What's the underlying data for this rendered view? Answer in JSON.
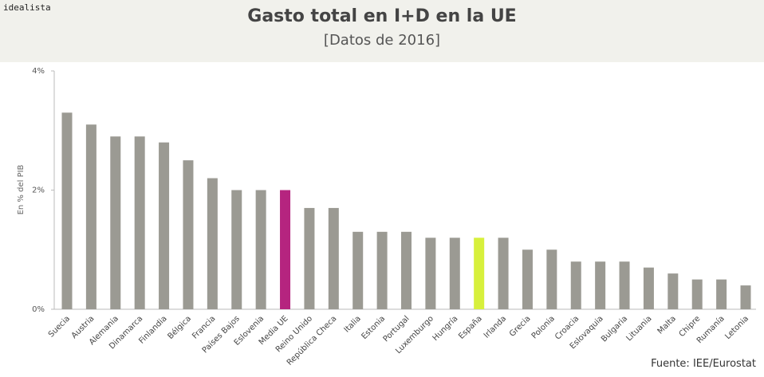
{
  "brand": "idealista",
  "source": "Fuente: IEE/Eurostat",
  "colors": {
    "bar": "#9b9a93",
    "highlight_media": "#b5247f",
    "highlight_spain": "#d7f03c",
    "header_bg": "#f1f1ec"
  },
  "chart_data": {
    "type": "bar",
    "title": "Gasto total en I+D en la UE",
    "subtitle": "[Datos de 2016]",
    "ylabel": "En % del PIB",
    "ylim": [
      0,
      4
    ],
    "yticks": [
      "0%",
      "2%",
      "4%"
    ],
    "grid": false,
    "categories": [
      "Suecia",
      "Austria",
      "Alemania",
      "Dinamarca",
      "Finlandia",
      "Bélgica",
      "Francia",
      "Países Bajos",
      "Eslovenia",
      "Media UE",
      "Reino Unido",
      "República Checa",
      "Italia",
      "Estonia",
      "Portugal",
      "Luxemburgo",
      "Hungría",
      "España",
      "Irlanda",
      "Grecia",
      "Polonia",
      "Croacia",
      "Eslovaquia",
      "Bulgaria",
      "Lituania",
      "Malta",
      "Chipre",
      "Rumanía",
      "Letonia"
    ],
    "values": [
      3.3,
      3.1,
      2.9,
      2.9,
      2.8,
      2.5,
      2.2,
      2.0,
      2.0,
      2.0,
      1.7,
      1.7,
      1.3,
      1.3,
      1.3,
      1.2,
      1.2,
      1.2,
      1.2,
      1.0,
      1.0,
      0.8,
      0.8,
      0.8,
      0.7,
      0.6,
      0.5,
      0.5,
      0.4
    ],
    "highlights": {
      "Media UE": "highlight_media",
      "España": "highlight_spain"
    }
  }
}
